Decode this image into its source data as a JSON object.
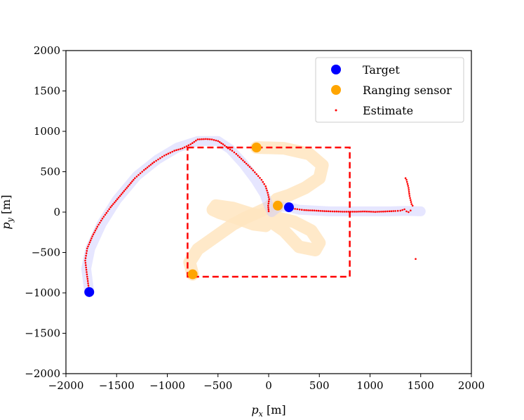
{
  "chart_data": {
    "type": "scatter",
    "title": "",
    "xlabel": "p_x [m]",
    "ylabel": "p_y [m]",
    "xlim": [
      -2000,
      2000
    ],
    "ylim": [
      -2000,
      2000
    ],
    "xticks": [
      -2000,
      -1500,
      -1000,
      -500,
      0,
      500,
      1000,
      1500,
      2000
    ],
    "yticks": [
      -2000,
      -1500,
      -1000,
      -500,
      0,
      500,
      1000,
      1500,
      2000
    ],
    "grid": false,
    "legend_position": "top-right",
    "colors": {
      "target": "#0000ff",
      "sensor": "#ffa500",
      "estimate": "#ff0000",
      "target_trail": "#c8c8ff",
      "sensor_trail": "#ffe5bf",
      "region": "#ff0000"
    },
    "legend": [
      {
        "label": "Target",
        "marker": "dot-large",
        "color": "#0000ff"
      },
      {
        "label": "Ranging sensor",
        "marker": "dot-large",
        "color": "#ffa500"
      },
      {
        "label": "Estimate",
        "marker": "dot-small",
        "color": "#ff0000"
      }
    ],
    "region_box": {
      "x_min": -800,
      "x_max": 800,
      "y_min": -800,
      "y_max": 800,
      "style": "dashed"
    },
    "targets": [
      {
        "x": -1770,
        "y": -990
      },
      {
        "x": 200,
        "y": 60
      }
    ],
    "sensors": [
      {
        "x": -120,
        "y": 800
      },
      {
        "x": 90,
        "y": 80
      },
      {
        "x": -750,
        "y": -770
      }
    ],
    "target_trails": [
      [
        [
          -1770,
          -990
        ],
        [
          -1800,
          -700
        ],
        [
          -1760,
          -450
        ],
        [
          -1650,
          -150
        ],
        [
          -1500,
          150
        ],
        [
          -1300,
          450
        ],
        [
          -1100,
          650
        ],
        [
          -900,
          800
        ],
        [
          -700,
          880
        ],
        [
          -500,
          880
        ],
        [
          -380,
          780
        ],
        [
          -250,
          600
        ],
        [
          -130,
          400
        ],
        [
          -40,
          220
        ],
        [
          0,
          80
        ],
        [
          30,
          0
        ],
        [
          100,
          70
        ],
        [
          200,
          60
        ]
      ],
      [
        [
          200,
          60
        ],
        [
          300,
          30
        ],
        [
          600,
          10
        ],
        [
          900,
          10
        ],
        [
          1200,
          10
        ],
        [
          1350,
          15
        ],
        [
          1500,
          10
        ]
      ]
    ],
    "sensor_trails": [
      [
        [
          -120,
          800
        ],
        [
          150,
          790
        ],
        [
          400,
          720
        ],
        [
          530,
          580
        ],
        [
          500,
          420
        ],
        [
          360,
          300
        ],
        [
          200,
          210
        ],
        [
          80,
          160
        ],
        [
          0,
          60
        ],
        [
          -120,
          -10
        ],
        [
          -230,
          -70
        ],
        [
          -350,
          -150
        ],
        [
          -520,
          -300
        ],
        [
          -700,
          -460
        ],
        [
          -780,
          -620
        ],
        [
          -750,
          -770
        ]
      ],
      [
        [
          90,
          80
        ],
        [
          20,
          -60
        ],
        [
          -30,
          -170
        ],
        [
          -150,
          -150
        ],
        [
          -350,
          -60
        ],
        [
          -480,
          -10
        ],
        [
          -550,
          30
        ],
        [
          -520,
          80
        ],
        [
          -350,
          50
        ],
        [
          -150,
          -30
        ],
        [
          50,
          -60
        ],
        [
          250,
          -120
        ],
        [
          420,
          -230
        ],
        [
          500,
          -380
        ],
        [
          460,
          -470
        ],
        [
          300,
          -430
        ],
        [
          150,
          -230
        ],
        [
          0,
          -100
        ],
        [
          -50,
          -20
        ]
      ]
    ],
    "estimate_paths": [
      [
        [
          -1770,
          -990
        ],
        [
          -1790,
          -800
        ],
        [
          -1810,
          -600
        ],
        [
          -1790,
          -450
        ],
        [
          -1740,
          -300
        ],
        [
          -1690,
          -180
        ],
        [
          -1640,
          -80
        ],
        [
          -1560,
          60
        ],
        [
          -1480,
          180
        ],
        [
          -1400,
          300
        ],
        [
          -1320,
          420
        ],
        [
          -1230,
          520
        ],
        [
          -1130,
          620
        ],
        [
          -1030,
          700
        ],
        [
          -930,
          760
        ],
        [
          -850,
          790
        ],
        [
          -770,
          840
        ],
        [
          -700,
          900
        ],
        [
          -620,
          905
        ],
        [
          -560,
          900
        ],
        [
          -500,
          880
        ],
        [
          -450,
          840
        ],
        [
          -400,
          790
        ],
        [
          -360,
          760
        ],
        [
          -320,
          720
        ],
        [
          -270,
          660
        ],
        [
          -220,
          600
        ],
        [
          -170,
          540
        ],
        [
          -120,
          470
        ],
        [
          -70,
          400
        ],
        [
          -30,
          320
        ],
        [
          -10,
          240
        ],
        [
          5,
          160
        ],
        [
          -5,
          80
        ],
        [
          0,
          10
        ]
      ],
      [
        [
          200,
          60
        ],
        [
          260,
          40
        ],
        [
          350,
          25
        ],
        [
          450,
          20
        ],
        [
          550,
          12
        ],
        [
          650,
          8
        ],
        [
          750,
          5
        ],
        [
          850,
          5
        ],
        [
          950,
          8
        ],
        [
          1050,
          3
        ],
        [
          1150,
          8
        ],
        [
          1250,
          14
        ],
        [
          1300,
          18
        ],
        [
          1340,
          35
        ],
        [
          1360,
          10
        ],
        [
          1380,
          0
        ],
        [
          1400,
          20
        ]
      ],
      [
        [
          1350,
          420
        ],
        [
          1360,
          400
        ],
        [
          1380,
          300
        ],
        [
          1390,
          200
        ],
        [
          1400,
          150
        ],
        [
          1410,
          100
        ],
        [
          1420,
          80
        ]
      ],
      [
        [
          1450,
          -580
        ]
      ]
    ]
  }
}
